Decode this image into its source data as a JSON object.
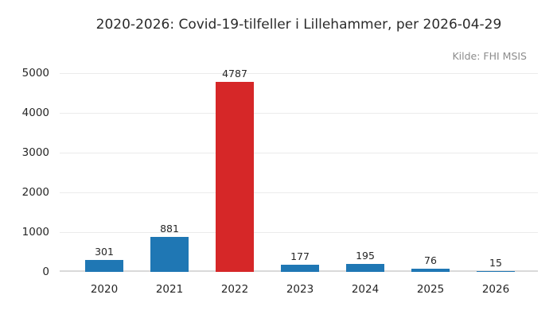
{
  "chart": {
    "title": "2020-2026: Covid-19-tilfeller i Lillehammer, per 2026-04-29",
    "source": "Kilde: FHI MSIS"
  },
  "chart_data": {
    "type": "bar",
    "title": "2020-2026: Covid-19-tilfeller i Lillehammer, per 2026-04-29",
    "source": "Kilde: FHI MSIS",
    "categories": [
      "2020",
      "2021",
      "2022",
      "2023",
      "2024",
      "2025",
      "2026"
    ],
    "values": [
      301,
      881,
      4787,
      177,
      195,
      76,
      15
    ],
    "bar_colors": [
      "#1f77b4",
      "#1f77b4",
      "#d62728",
      "#1f77b4",
      "#1f77b4",
      "#1f77b4",
      "#1f77b4"
    ],
    "default_color": "#1f77b4",
    "highlight_color": "#d62728",
    "value_labels": [
      301,
      881,
      4787,
      177,
      195,
      76,
      15
    ],
    "xlabel": "",
    "ylabel": "",
    "ylim": [
      0,
      5000
    ],
    "yticks": [
      0,
      1000,
      2000,
      3000,
      4000,
      5000
    ],
    "grid": "horizontal",
    "legend": "none",
    "text_color": "#262626",
    "grid_color": "#ebebeb",
    "baseline_color": "#d9d9d9"
  }
}
